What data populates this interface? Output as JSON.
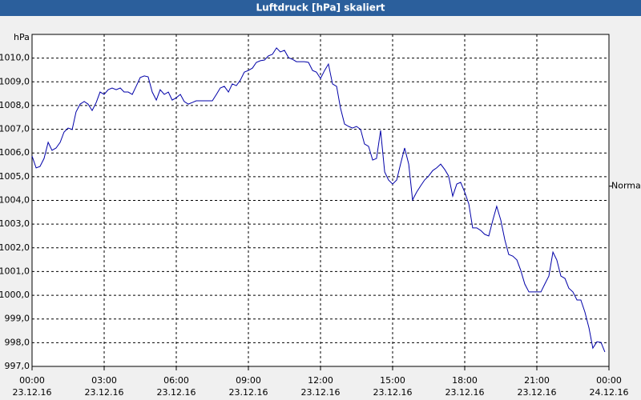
{
  "chart_data": {
    "type": "line",
    "title": "Luftdruck [hPa] skaliert",
    "y_unit": "hPa",
    "color": "#0000a8",
    "grid": true,
    "xlim": [
      0,
      24
    ],
    "ylim": [
      997,
      1011
    ],
    "yticks": [
      {
        "value": 997,
        "label": "997,0"
      },
      {
        "value": 998,
        "label": "998,0"
      },
      {
        "value": 999,
        "label": "999,0"
      },
      {
        "value": 1000,
        "label": "1000,0"
      },
      {
        "value": 1001,
        "label": "1001,0"
      },
      {
        "value": 1002,
        "label": "1002,0"
      },
      {
        "value": 1003,
        "label": "1003,0"
      },
      {
        "value": 1004,
        "label": "1004,0"
      },
      {
        "value": 1005,
        "label": "1005,0"
      },
      {
        "value": 1006,
        "label": "1006,0"
      },
      {
        "value": 1007,
        "label": "1007,0"
      },
      {
        "value": 1008,
        "label": "1008,0"
      },
      {
        "value": 1009,
        "label": "1009,0"
      },
      {
        "value": 1010,
        "label": "1010,0"
      }
    ],
    "xticks": [
      {
        "value": 0,
        "label": "00:00",
        "date": "23.12.16"
      },
      {
        "value": 3,
        "label": "03:00",
        "date": "23.12.16"
      },
      {
        "value": 6,
        "label": "06:00",
        "date": "23.12.16"
      },
      {
        "value": 9,
        "label": "09:00",
        "date": "23.12.16"
      },
      {
        "value": 12,
        "label": "12:00",
        "date": "23.12.16"
      },
      {
        "value": 15,
        "label": "15:00",
        "date": "23.12.16"
      },
      {
        "value": 18,
        "label": "18:00",
        "date": "23.12.16"
      },
      {
        "value": 21,
        "label": "21:00",
        "date": "23.12.16"
      },
      {
        "value": 24,
        "label": "00:00",
        "date": "24.12.16"
      }
    ],
    "normal": {
      "label": "Normal",
      "value": 1004.6
    },
    "x": [
      0,
      0.17,
      0.33,
      0.5,
      0.67,
      0.83,
      1,
      1.17,
      1.33,
      1.5,
      1.67,
      1.83,
      2,
      2.17,
      2.33,
      2.5,
      2.67,
      2.83,
      3,
      3.17,
      3.33,
      3.5,
      3.67,
      3.83,
      4,
      4.17,
      4.33,
      4.5,
      4.67,
      4.83,
      5,
      5.17,
      5.33,
      5.5,
      5.67,
      5.83,
      6,
      6.17,
      6.33,
      6.5,
      6.67,
      6.83,
      7,
      7.17,
      7.33,
      7.5,
      7.67,
      7.83,
      8,
      8.17,
      8.33,
      8.5,
      8.67,
      8.83,
      9,
      9.17,
      9.33,
      9.5,
      9.67,
      9.83,
      10,
      10.17,
      10.33,
      10.5,
      10.67,
      10.83,
      11,
      11.17,
      11.33,
      11.5,
      11.67,
      11.83,
      12,
      12.17,
      12.33,
      12.5,
      12.67,
      12.83,
      13,
      13.17,
      13.33,
      13.5,
      13.67,
      13.83,
      14,
      14.17,
      14.33,
      14.5,
      14.67,
      14.83,
      15,
      15.17,
      15.33,
      15.5,
      15.67,
      15.83,
      16,
      16.17,
      16.33,
      16.5,
      16.67,
      16.83,
      17,
      17.17,
      17.33,
      17.5,
      17.67,
      17.83,
      18,
      18.17,
      18.33,
      18.5,
      18.67,
      18.83,
      19,
      19.17,
      19.33,
      19.5,
      19.67,
      19.83,
      20,
      20.17,
      20.33,
      20.5,
      20.67,
      20.83,
      21,
      21.17,
      21.33,
      21.5,
      21.67,
      21.83,
      22,
      22.17,
      22.33,
      22.5,
      22.67,
      22.83,
      23,
      23.17,
      23.33,
      23.5,
      23.67,
      23.83
    ],
    "values": [
      1005.87,
      1005.37,
      1005.43,
      1005.77,
      1006.45,
      1006.11,
      1006.21,
      1006.45,
      1006.88,
      1007.05,
      1006.99,
      1007.73,
      1008.06,
      1008.17,
      1008.06,
      1007.79,
      1008.13,
      1008.57,
      1008.47,
      1008.67,
      1008.74,
      1008.67,
      1008.74,
      1008.57,
      1008.57,
      1008.47,
      1008.81,
      1009.18,
      1009.25,
      1009.21,
      1008.57,
      1008.23,
      1008.67,
      1008.47,
      1008.57,
      1008.23,
      1008.33,
      1008.47,
      1008.17,
      1008.06,
      1008.13,
      1008.2,
      1008.2,
      1008.2,
      1008.2,
      1008.2,
      1008.47,
      1008.74,
      1008.81,
      1008.57,
      1008.91,
      1008.84,
      1009.08,
      1009.41,
      1009.48,
      1009.58,
      1009.82,
      1009.89,
      1009.92,
      1010.09,
      1010.16,
      1010.43,
      1010.26,
      1010.33,
      1010.02,
      1009.95,
      1009.85,
      1009.85,
      1009.85,
      1009.82,
      1009.48,
      1009.41,
      1009.14,
      1009.48,
      1009.75,
      1008.91,
      1008.81,
      1007.9,
      1007.22,
      1007.12,
      1007.05,
      1007.12,
      1006.99,
      1006.38,
      1006.28,
      1005.7,
      1005.77,
      1006.95,
      1005.2,
      1004.86,
      1004.69,
      1004.86,
      1005.53,
      1006.21,
      1005.53,
      1004.02,
      1004.35,
      1004.62,
      1004.86,
      1005.03,
      1005.26,
      1005.37,
      1005.53,
      1005.3,
      1005.03,
      1004.18,
      1004.69,
      1004.76,
      1004.35,
      1003.85,
      1002.84,
      1002.84,
      1002.73,
      1002.57,
      1002.5,
      1003.17,
      1003.75,
      1003.17,
      1002.33,
      1001.72,
      1001.65,
      1001.49,
      1001.05,
      1000.47,
      1000.14,
      1000.14,
      1000.14,
      1000.14,
      1000.47,
      1000.81,
      1001.82,
      1001.49,
      1000.81,
      1000.71,
      1000.3,
      1000.14,
      999.8,
      999.8,
      999.29,
      998.62,
      997.77,
      998.04,
      998.01,
      997.61
    ]
  }
}
